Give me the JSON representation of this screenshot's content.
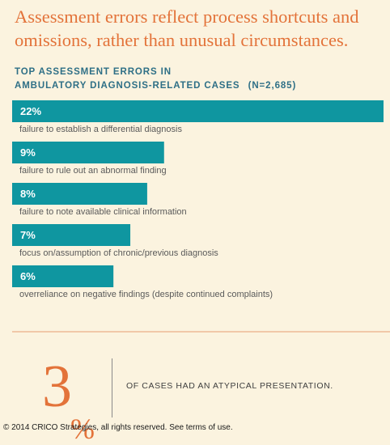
{
  "headline": "Assessment errors reflect process shortcuts and omissions, rather than unusual circumstances.",
  "chart_data": {
    "type": "bar",
    "title": "TOP ASSESSMENT ERRORS IN AMBULATORY DIAGNOSIS-RELATED CASES",
    "title_line1": "TOP ASSESSMENT ERRORS IN",
    "title_line2": "AMBULATORY DIAGNOSIS-RELATED CASES",
    "sample_size": "(N=2,685)",
    "orientation": "horizontal",
    "categories": [
      "failure to establish a differential diagnosis",
      "failure to rule out an abnormal finding",
      "failure to note available clinical information",
      "focus on/assumption of chronic/previous diagnosis",
      "overreliance on negative findings (despite continued complaints)"
    ],
    "values": [
      22,
      9,
      8,
      7,
      6
    ],
    "value_labels": [
      "22%",
      "9%",
      "8%",
      "7%",
      "6%"
    ],
    "unit": "%",
    "xlim": [
      0,
      22
    ],
    "grid": false,
    "bar_color": "#0f96a0",
    "label_color": "#5a5a5a"
  },
  "callout": {
    "number": "3",
    "percent_sign": "%",
    "text": "OF CASES HAD AN ATYPICAL PRESENTATION."
  },
  "copyright": "© 2014 CRICO Strategies, all rights reserved. See terms of use.",
  "colors": {
    "background": "#fbf3df",
    "accent_orange": "#e3733a",
    "teal": "#0f96a0",
    "title_blue": "#2e6f86"
  }
}
